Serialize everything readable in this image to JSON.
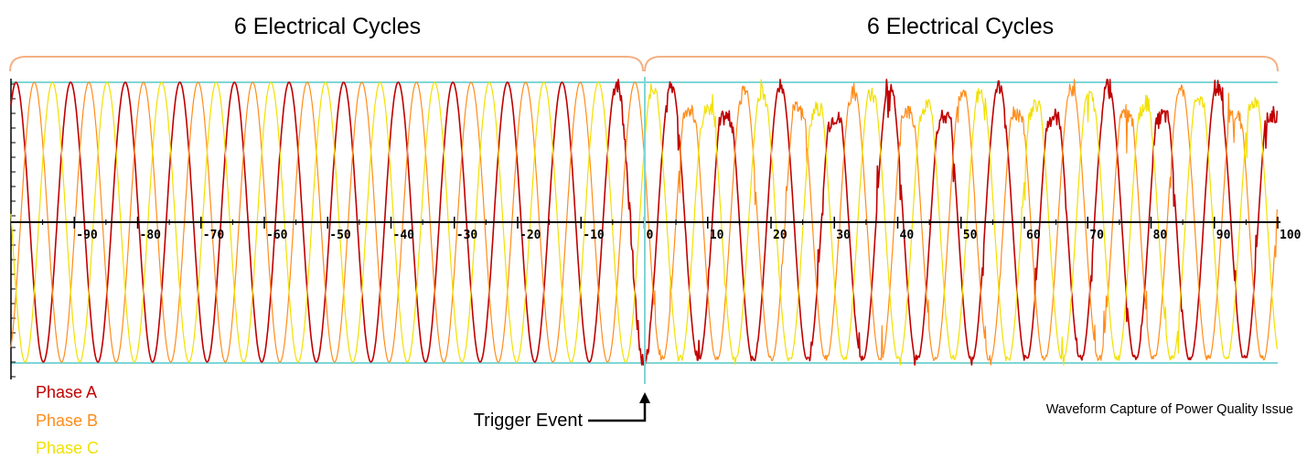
{
  "chart_data": {
    "type": "line",
    "annotations": {
      "left_bracket_label": "6 Electrical Cycles",
      "right_bracket_label": "6 Electrical Cycles",
      "trigger_label": "Trigger Event",
      "caption": "Waveform Capture of Power Quality Issue"
    },
    "xlim": [
      -100,
      100
    ],
    "x_ticks": [
      -90,
      -80,
      -70,
      -60,
      -50,
      -40,
      -30,
      -20,
      -10,
      0,
      10,
      20,
      30,
      40,
      50,
      60,
      70,
      80,
      90,
      100
    ],
    "x_tick_labels": [
      "-90",
      "-80",
      "-70",
      "-60",
      "-50",
      "-40",
      "-30",
      "-20",
      "-10",
      "0",
      "10",
      "20",
      "30",
      "40",
      "50",
      "60",
      "70",
      "80",
      "90",
      "100"
    ],
    "ylim": [
      -1,
      1
    ],
    "trigger_x": 0,
    "grid": false,
    "legend_placement": "bottom-left",
    "cycles_per_window": 6,
    "series": [
      {
        "name": "Phase A",
        "color": "#c00000",
        "phase_deg": 0
      },
      {
        "name": "Phase B",
        "color": "#ff8c1a",
        "phase_deg": -120
      },
      {
        "name": "Phase C",
        "color": "#f2e000",
        "phase_deg": 120
      }
    ],
    "colors": {
      "envelope": "#7fd6d6",
      "bracket": "#f4b183"
    }
  }
}
